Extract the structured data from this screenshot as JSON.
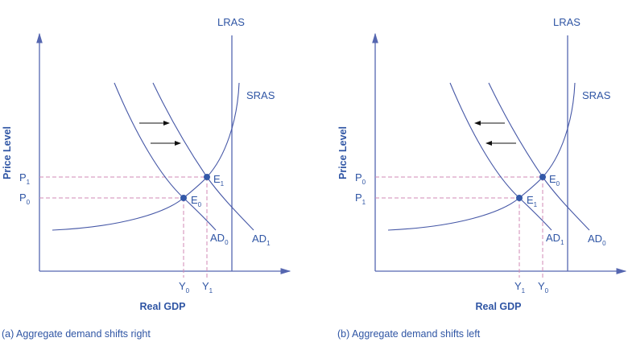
{
  "panels": [
    {
      "caption": "(a) Aggregate demand shifts right",
      "y_axis_label": "Price Level",
      "x_axis_label": "Real GDP",
      "lras_label": "LRAS",
      "sras_label": "SRAS",
      "shift_direction": "right",
      "price_upper": {
        "base": "P",
        "sub": "1"
      },
      "price_lower": {
        "base": "P",
        "sub": "0"
      },
      "output_left": {
        "base": "Y",
        "sub": "0"
      },
      "output_right": {
        "base": "Y",
        "sub": "1"
      },
      "eq_upper": {
        "base": "E",
        "sub": "1"
      },
      "eq_lower": {
        "base": "E",
        "sub": "0"
      },
      "ad_left": {
        "base": "AD",
        "sub": "0"
      },
      "ad_right": {
        "base": "AD",
        "sub": "1"
      }
    },
    {
      "caption": "(b) Aggregate demand shifts left",
      "y_axis_label": "Price Level",
      "x_axis_label": "Real GDP",
      "lras_label": "LRAS",
      "sras_label": "SRAS",
      "shift_direction": "left",
      "price_upper": {
        "base": "P",
        "sub": "0"
      },
      "price_lower": {
        "base": "P",
        "sub": "1"
      },
      "output_left": {
        "base": "Y",
        "sub": "1"
      },
      "output_right": {
        "base": "Y",
        "sub": "0"
      },
      "eq_upper": {
        "base": "E",
        "sub": "0"
      },
      "eq_lower": {
        "base": "E",
        "sub": "1"
      },
      "ad_left": {
        "base": "AD",
        "sub": "1"
      },
      "ad_right": {
        "base": "AD",
        "sub": "0"
      }
    }
  ],
  "colors": {
    "axis": "#5566b0",
    "curve": "#4557a6",
    "label": "#2f55a4",
    "guide": "#d08ab4",
    "arrow": "#111111"
  }
}
